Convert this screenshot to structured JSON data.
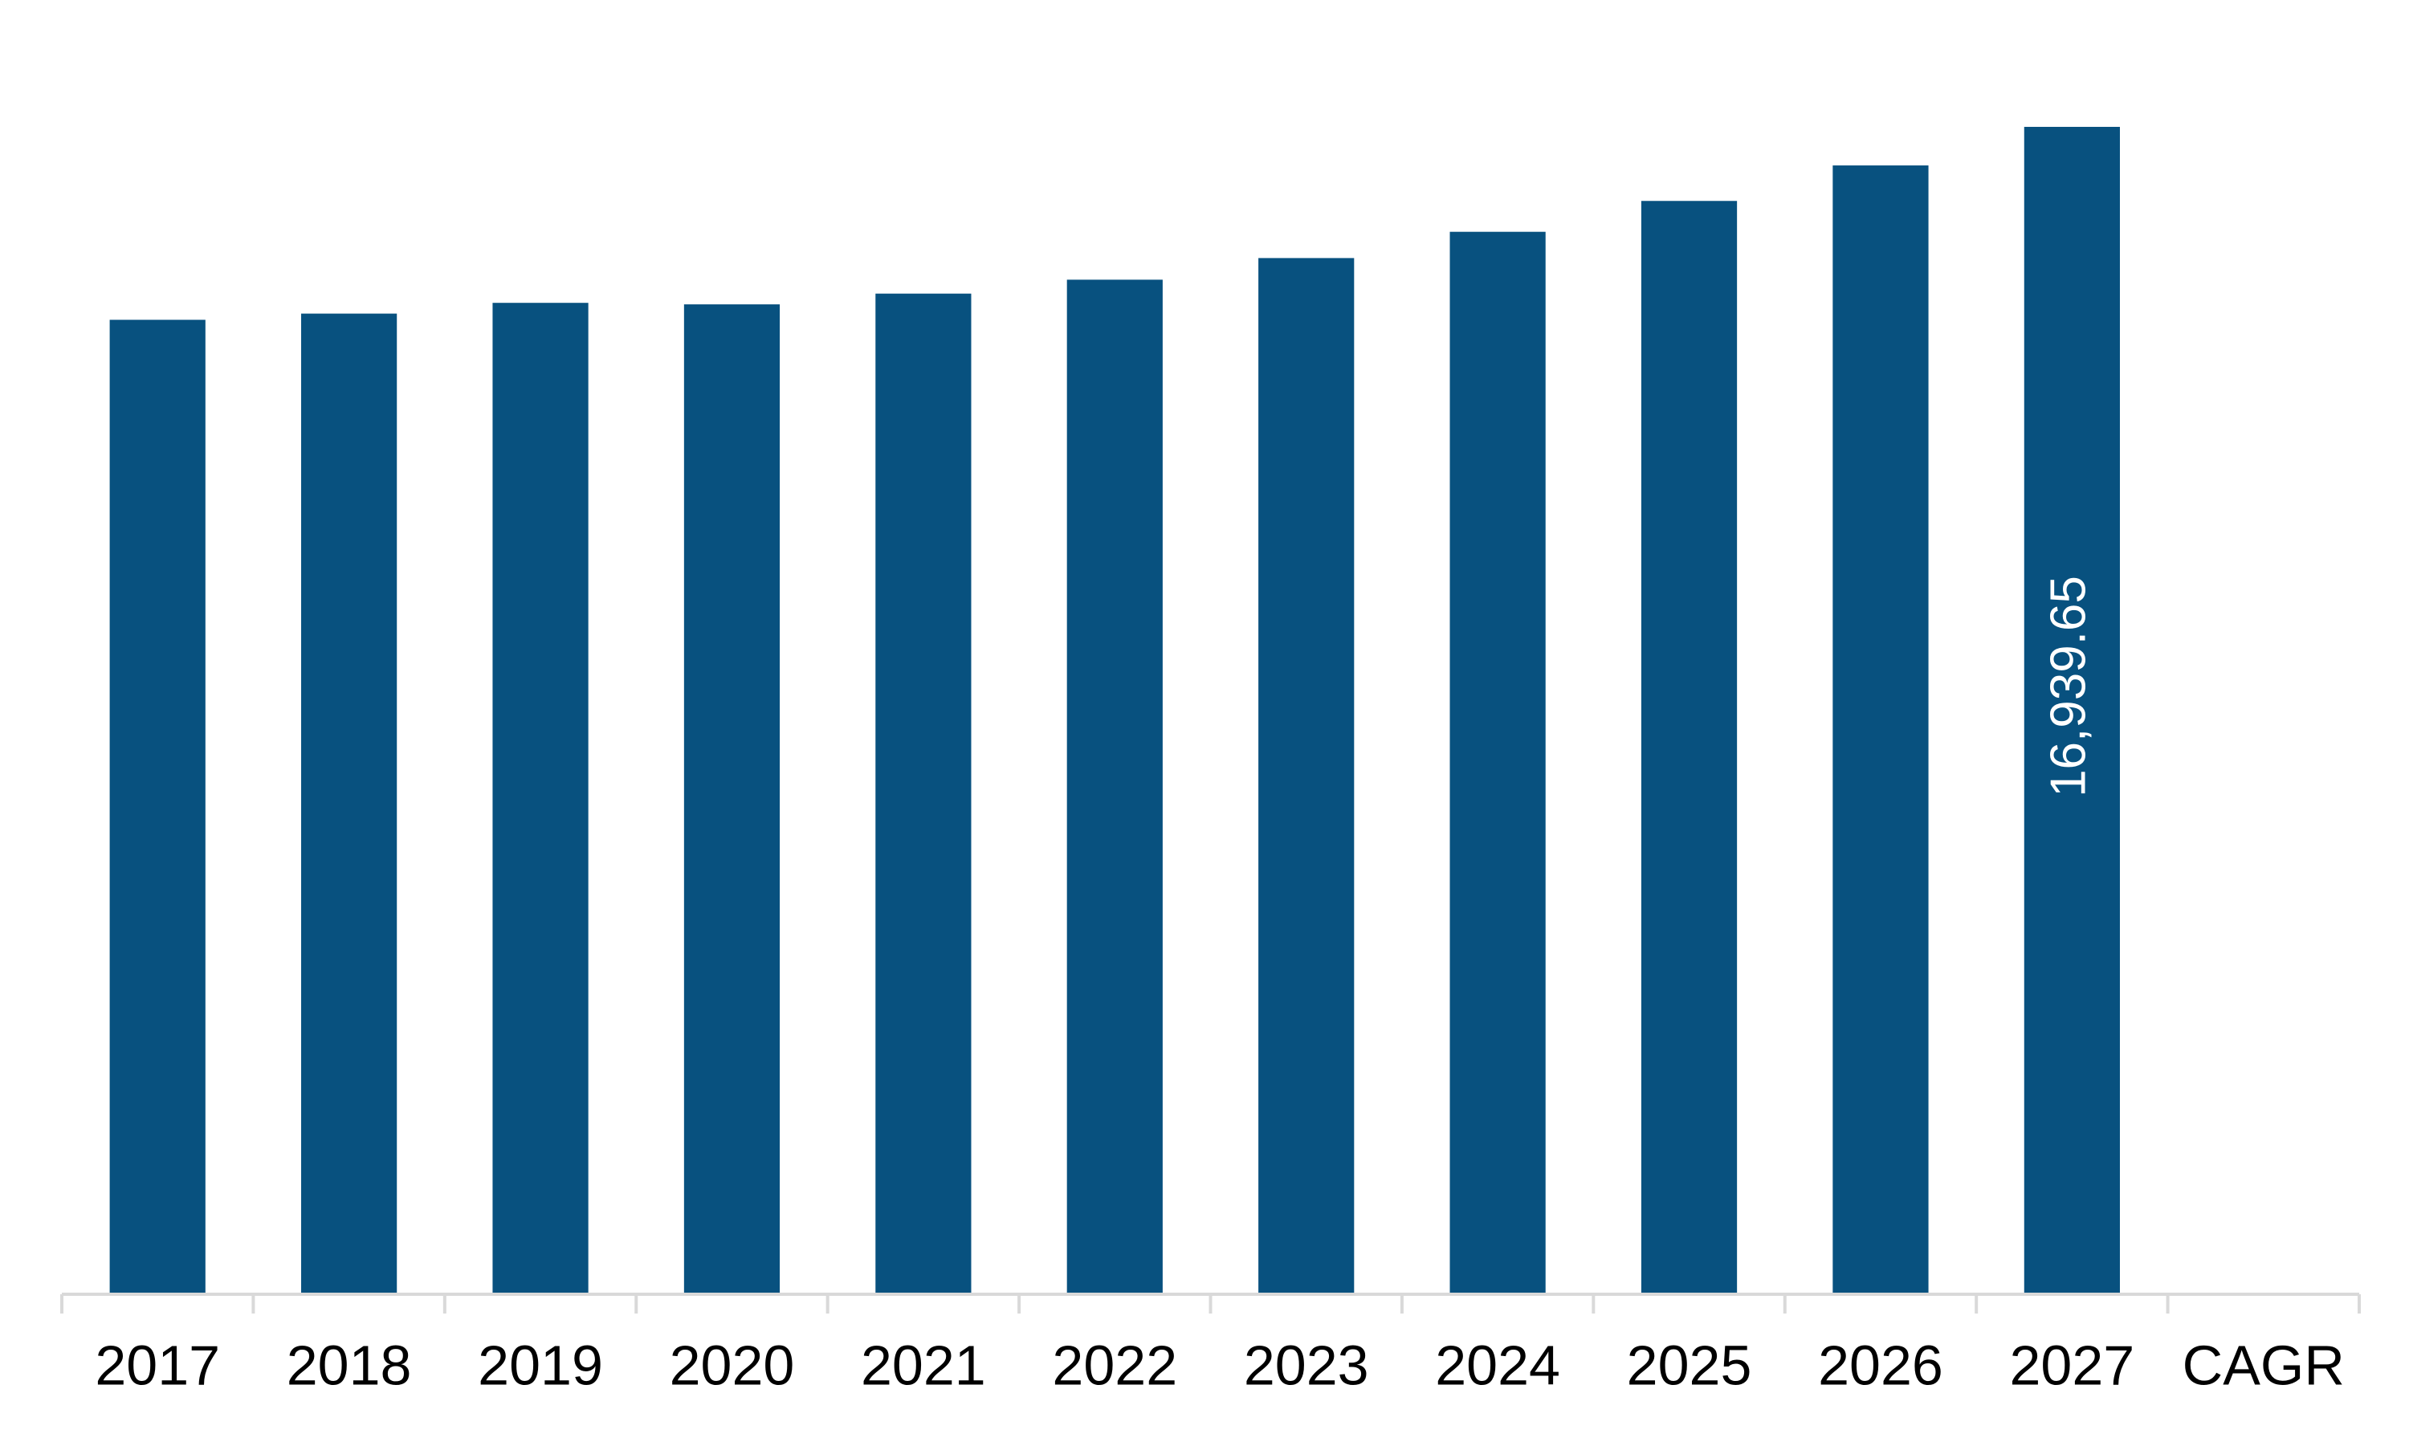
{
  "chart_data": {
    "type": "bar",
    "categories": [
      "2017",
      "2018",
      "2019",
      "2020",
      "2021",
      "2022",
      "2023",
      "2024",
      "2025",
      "2026",
      "2027",
      "CAGR"
    ],
    "values": [
      14140,
      14230,
      14386,
      14364,
      14520,
      14722,
      15036,
      15417,
      15865,
      16380,
      16939.65,
      null
    ],
    "value_labels": [
      null,
      null,
      null,
      null,
      null,
      null,
      null,
      null,
      null,
      null,
      "16,939.65",
      null
    ],
    "color": "#08517f",
    "ylim": [
      0,
      18000
    ]
  }
}
